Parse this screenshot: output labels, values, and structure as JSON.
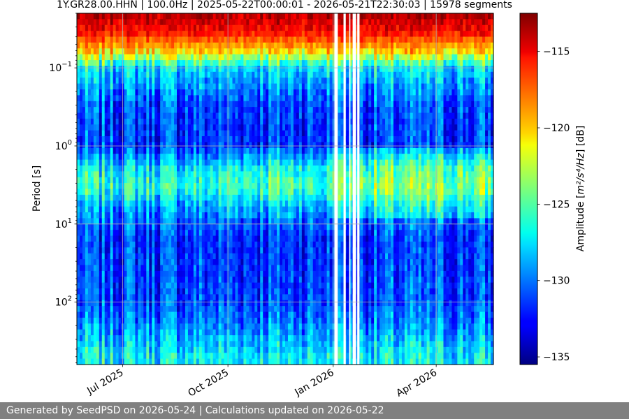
{
  "chart_data": {
    "type": "heatmap",
    "title": "1Y.GR28.00.HHN | 100.0Hz | 2025-05-22T00:00:01 - 2026-05-21T22:30:03 | 15978 segments",
    "ylabel": "Period [s]",
    "xlabel": "",
    "x_range": [
      "2025-05-22",
      "2026-05-21"
    ],
    "x_ticks": [
      {
        "date": "2025-07-01",
        "label": "Jul 2025"
      },
      {
        "date": "2025-10-01",
        "label": "Oct 2025"
      },
      {
        "date": "2026-01-01",
        "label": "Jan 2026"
      },
      {
        "date": "2026-04-01",
        "label": "Apr 2026"
      }
    ],
    "y_scale": "log",
    "y_inverted": true,
    "y_range": [
      0.02,
      630
    ],
    "y_ticks": [
      {
        "value": 0.1,
        "base": "10",
        "exp": "−1"
      },
      {
        "value": 1,
        "base": "10",
        "exp": "0"
      },
      {
        "value": 10,
        "base": "10",
        "exp": "1"
      },
      {
        "value": 100,
        "base": "10",
        "exp": "2"
      }
    ],
    "grid": true,
    "colormap": "jet",
    "colorbar": {
      "label_prefix": "Amplitude [",
      "label_math": "m²/s⁴/Hz",
      "label_suffix": "] [dB]",
      "range": [
        -135.5,
        -112.5
      ],
      "ticks": [
        -115,
        -120,
        -125,
        -130,
        -135
      ],
      "tick_labels": [
        "−115",
        "−120",
        "−125",
        "−130",
        "−135"
      ]
    },
    "data_gaps": [
      [
        "2026-01-02",
        "2026-01-05"
      ],
      [
        "2026-01-10",
        "2026-01-12"
      ],
      [
        "2026-01-15",
        "2026-01-16"
      ],
      [
        "2026-01-18",
        "2026-01-21"
      ],
      [
        "2026-01-22",
        "2026-01-24"
      ]
    ],
    "period_profile": [
      {
        "period": 0.02,
        "db": -113.5
      },
      {
        "period": 0.035,
        "db": -115.5
      },
      {
        "period": 0.06,
        "db": -120
      },
      {
        "period": 0.1,
        "db": -127.5
      },
      {
        "period": 0.3,
        "db": -131
      },
      {
        "period": 1,
        "db": -131.5
      },
      {
        "period": 2,
        "db": -127
      },
      {
        "period": 3.5,
        "db": -126
      },
      {
        "period": 6,
        "db": -129
      },
      {
        "period": 15,
        "db": -131.5
      },
      {
        "period": 100,
        "db": -131
      },
      {
        "period": 250,
        "db": -129
      },
      {
        "period": 500,
        "db": -127
      }
    ]
  },
  "footer": {
    "text": "Generated by SeedPSD on 2026-05-24 | Calculations updated on 2026-05-22"
  }
}
